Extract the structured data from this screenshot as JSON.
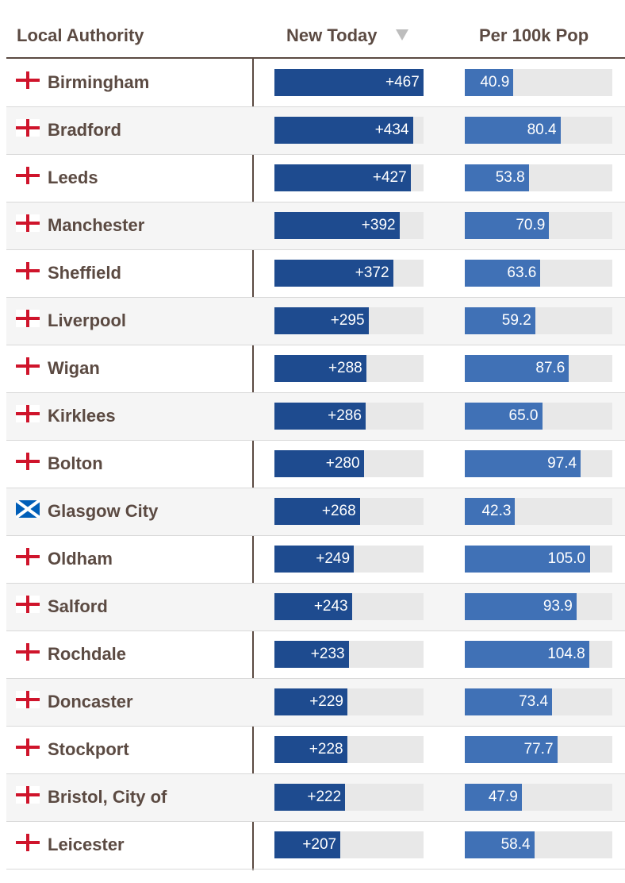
{
  "header": {
    "name_label": "Local Authority",
    "new_label": "New Today",
    "per_label": "Per 100k Pop",
    "sort_icon": "sort-down-triangle"
  },
  "colors": {
    "text": "#5b4a42",
    "new_bar": "#1e4b8f",
    "per_bar": "#4071b6",
    "track": "#e8e8e8",
    "england_red": "#cf142b",
    "scotland_blue": "#005eb8"
  },
  "chart_data": {
    "type": "table",
    "title": "",
    "columns": [
      "Local Authority",
      "New Today",
      "Per 100k Pop"
    ],
    "new_max": 467,
    "per_max": 124,
    "rows": [
      {
        "name": "Birmingham",
        "flag": "england",
        "new_label": "+467",
        "new": 467,
        "per_label": "40.9",
        "per": 40.9
      },
      {
        "name": "Bradford",
        "flag": "england",
        "new_label": "+434",
        "new": 434,
        "per_label": "80.4",
        "per": 80.4
      },
      {
        "name": "Leeds",
        "flag": "england",
        "new_label": "+427",
        "new": 427,
        "per_label": "53.8",
        "per": 53.8
      },
      {
        "name": "Manchester",
        "flag": "england",
        "new_label": "+392",
        "new": 392,
        "per_label": "70.9",
        "per": 70.9
      },
      {
        "name": "Sheffield",
        "flag": "england",
        "new_label": "+372",
        "new": 372,
        "per_label": "63.6",
        "per": 63.6
      },
      {
        "name": "Liverpool",
        "flag": "england",
        "new_label": "+295",
        "new": 295,
        "per_label": "59.2",
        "per": 59.2
      },
      {
        "name": "Wigan",
        "flag": "england",
        "new_label": "+288",
        "new": 288,
        "per_label": "87.6",
        "per": 87.6
      },
      {
        "name": "Kirklees",
        "flag": "england",
        "new_label": "+286",
        "new": 286,
        "per_label": "65.0",
        "per": 65.0
      },
      {
        "name": "Bolton",
        "flag": "england",
        "new_label": "+280",
        "new": 280,
        "per_label": "97.4",
        "per": 97.4
      },
      {
        "name": "Glasgow City",
        "flag": "scotland",
        "new_label": "+268",
        "new": 268,
        "per_label": "42.3",
        "per": 42.3
      },
      {
        "name": "Oldham",
        "flag": "england",
        "new_label": "+249",
        "new": 249,
        "per_label": "105.0",
        "per": 105.0
      },
      {
        "name": "Salford",
        "flag": "england",
        "new_label": "+243",
        "new": 243,
        "per_label": "93.9",
        "per": 93.9
      },
      {
        "name": "Rochdale",
        "flag": "england",
        "new_label": "+233",
        "new": 233,
        "per_label": "104.8",
        "per": 104.8
      },
      {
        "name": "Doncaster",
        "flag": "england",
        "new_label": "+229",
        "new": 229,
        "per_label": "73.4",
        "per": 73.4
      },
      {
        "name": "Stockport",
        "flag": "england",
        "new_label": "+228",
        "new": 228,
        "per_label": "77.7",
        "per": 77.7
      },
      {
        "name": "Bristol, City of",
        "flag": "england",
        "new_label": "+222",
        "new": 222,
        "per_label": "47.9",
        "per": 47.9
      },
      {
        "name": "Leicester",
        "flag": "england",
        "new_label": "+207",
        "new": 207,
        "per_label": "58.4",
        "per": 58.4
      }
    ]
  }
}
